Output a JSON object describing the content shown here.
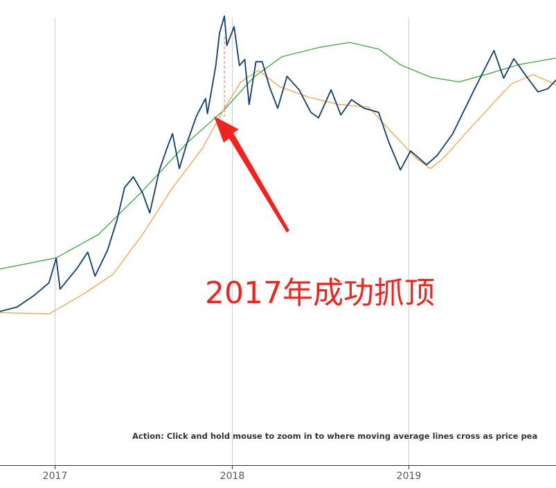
{
  "chart_data": {
    "type": "line",
    "title": "",
    "xlabel": "",
    "ylabel": "",
    "x_tick_labels": [
      "2017",
      "2018",
      "2019"
    ],
    "xlim": [
      "2016-09-10",
      "2019-11-01"
    ],
    "y_axis_scale": "log",
    "grid": "vertical lines at year ticks",
    "legend": "none",
    "series": [
      {
        "key": "price",
        "color": "#0f3a6b",
        "points": [
          [
            "2016-09-10",
            608
          ],
          [
            "2016-10-15",
            640
          ],
          [
            "2016-11-20",
            735
          ],
          [
            "2016-12-20",
            850
          ],
          [
            "2017-01-04",
            1135
          ],
          [
            "2017-01-12",
            790
          ],
          [
            "2017-02-15",
            1000
          ],
          [
            "2017-03-10",
            1220
          ],
          [
            "2017-03-25",
            920
          ],
          [
            "2017-04-20",
            1250
          ],
          [
            "2017-05-10",
            1800
          ],
          [
            "2017-05-25",
            2600
          ],
          [
            "2017-06-12",
            2950
          ],
          [
            "2017-07-01",
            2450
          ],
          [
            "2017-07-16",
            1930
          ],
          [
            "2017-08-05",
            3200
          ],
          [
            "2017-08-20",
            4100
          ],
          [
            "2017-09-01",
            4900
          ],
          [
            "2017-09-15",
            3250
          ],
          [
            "2017-10-01",
            4400
          ],
          [
            "2017-10-20",
            6000
          ],
          [
            "2017-11-08",
            7400
          ],
          [
            "2017-11-12",
            6200
          ],
          [
            "2017-11-29",
            10800
          ],
          [
            "2017-12-07",
            16000
          ],
          [
            "2017-12-17",
            19500
          ],
          [
            "2017-12-22",
            13800
          ],
          [
            "2018-01-06",
            17200
          ],
          [
            "2018-01-17",
            10900
          ],
          [
            "2018-01-28",
            11700
          ],
          [
            "2018-02-06",
            6900
          ],
          [
            "2018-02-20",
            11400
          ],
          [
            "2018-03-05",
            11400
          ],
          [
            "2018-03-20",
            8500
          ],
          [
            "2018-04-06",
            6600
          ],
          [
            "2018-04-25",
            9600
          ],
          [
            "2018-05-20",
            8200
          ],
          [
            "2018-06-13",
            6300
          ],
          [
            "2018-06-29",
            5900
          ],
          [
            "2018-07-25",
            8200
          ],
          [
            "2018-08-14",
            6100
          ],
          [
            "2018-09-05",
            7300
          ],
          [
            "2018-10-01",
            6600
          ],
          [
            "2018-10-31",
            6300
          ],
          [
            "2018-11-20",
            4500
          ],
          [
            "2018-12-15",
            3200
          ],
          [
            "2019-01-05",
            4000
          ],
          [
            "2019-02-07",
            3400
          ],
          [
            "2019-03-01",
            3800
          ],
          [
            "2019-04-02",
            4900
          ],
          [
            "2019-05-14",
            8000
          ],
          [
            "2019-06-26",
            13000
          ],
          [
            "2019-07-16",
            9400
          ],
          [
            "2019-08-06",
            11800
          ],
          [
            "2019-09-01",
            9600
          ],
          [
            "2019-09-25",
            8000
          ],
          [
            "2019-10-15",
            8300
          ],
          [
            "2019-11-01",
            9200
          ]
        ]
      },
      {
        "key": "moving-average-fast",
        "color": "#f39c3d",
        "points": [
          [
            "2016-09-10",
            600
          ],
          [
            "2016-12-20",
            590
          ],
          [
            "2017-03-01",
            745
          ],
          [
            "2017-05-01",
            940
          ],
          [
            "2017-07-01",
            1500
          ],
          [
            "2017-09-01",
            2600
          ],
          [
            "2017-11-01",
            4100
          ],
          [
            "2017-12-17",
            6600
          ],
          [
            "2018-01-20",
            9000
          ],
          [
            "2018-02-25",
            10300
          ],
          [
            "2018-04-10",
            8500
          ],
          [
            "2018-06-10",
            7500
          ],
          [
            "2018-08-10",
            6900
          ],
          [
            "2018-10-10",
            6700
          ],
          [
            "2018-11-20",
            5200
          ],
          [
            "2019-01-15",
            3700
          ],
          [
            "2019-02-15",
            3250
          ],
          [
            "2019-03-15",
            3700
          ],
          [
            "2019-05-01",
            5000
          ],
          [
            "2019-06-15",
            6600
          ],
          [
            "2019-08-01",
            8800
          ],
          [
            "2019-09-15",
            9800
          ],
          [
            "2019-11-01",
            8700
          ]
        ]
      },
      {
        "key": "moving-average-slow",
        "color": "#2ca02c",
        "points": [
          [
            "2016-09-10",
            1000
          ],
          [
            "2017-01-04",
            1140
          ],
          [
            "2017-04-01",
            1500
          ],
          [
            "2017-07-01",
            2500
          ],
          [
            "2017-10-01",
            4400
          ],
          [
            "2017-12-17",
            6500
          ],
          [
            "2018-02-15",
            9500
          ],
          [
            "2018-04-15",
            12100
          ],
          [
            "2018-07-01",
            13500
          ],
          [
            "2018-09-01",
            14300
          ],
          [
            "2018-11-01",
            13200
          ],
          [
            "2018-12-15",
            11000
          ],
          [
            "2019-02-15",
            9500
          ],
          [
            "2019-04-15",
            9000
          ],
          [
            "2019-06-15",
            9900
          ],
          [
            "2019-08-15",
            11000
          ],
          [
            "2019-11-01",
            11900
          ]
        ]
      }
    ],
    "annotations": {
      "action_note": "Action: Click and hold mouse to zoom in to where moving average lines cross as price pea",
      "overlay_text": "2017年成功抓顶",
      "arrow_color": "#f2231f",
      "peak_marker": {
        "date": "2017-12-17",
        "color": "#e8a0a0"
      }
    }
  }
}
